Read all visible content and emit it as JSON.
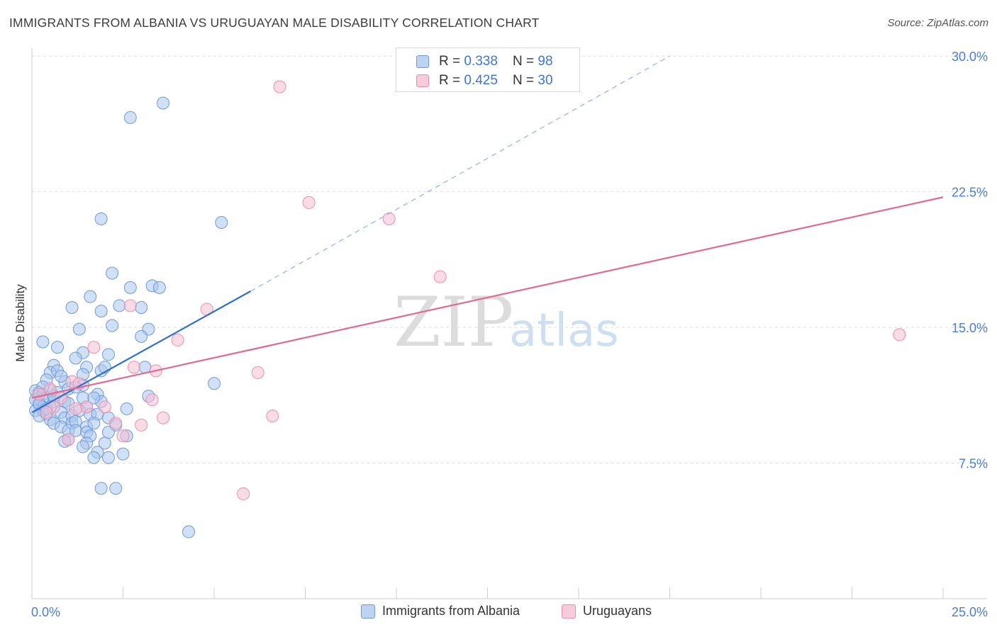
{
  "title": "IMMIGRANTS FROM ALBANIA VS URUGUAYAN MALE DISABILITY CORRELATION CHART",
  "source": "Source: ZipAtlas.com",
  "watermark": {
    "zip": "ZIP",
    "atlas": "atlas"
  },
  "colors": {
    "blue_fill": "#a9c7ee",
    "blue_stroke": "#6f9ad6",
    "blue_line": "#2f6fcf",
    "pink_fill": "#f6bfd1",
    "pink_stroke": "#e98faf",
    "pink_line": "#e06a93",
    "grid": "#dedede",
    "axis_text": "#4a7fd0"
  },
  "legend": {
    "rows": [
      {
        "r_label": "R = ",
        "r_value": "0.338",
        "n_label": "N = ",
        "n_value": "98"
      },
      {
        "r_label": "R = ",
        "r_value": "0.425",
        "n_label": "N = ",
        "n_value": "30"
      }
    ]
  },
  "bottom_legend": {
    "series1": "Immigrants from Albania",
    "series2": "Uruguayans"
  },
  "chart_data": {
    "type": "scatter",
    "title": "IMMIGRANTS FROM ALBANIA VS URUGUAYAN MALE DISABILITY CORRELATION CHART",
    "xlabel": "",
    "ylabel": "Male Disability",
    "xlim": [
      0,
      25
    ],
    "ylim": [
      0,
      31.5
    ],
    "x_tick_labels": [
      "0.0%",
      "25.0%"
    ],
    "y_ticks": [
      7.5,
      15.0,
      22.5,
      30.0
    ],
    "y_tick_labels": [
      "7.5%",
      "15.0%",
      "22.5%",
      "30.0%"
    ],
    "grid": true,
    "series": [
      {
        "name": "Immigrants from Albania",
        "color": "#a9c7ee",
        "R": 0.338,
        "N": 98,
        "trend": {
          "x0": 0.0,
          "y0": 10.3,
          "x1": 6.0,
          "y1": 17.0,
          "dash_to_x": 17.5,
          "dash_to_y": 30.0
        },
        "points": [
          [
            3.6,
            27.4
          ],
          [
            2.7,
            26.6
          ],
          [
            1.9,
            21.0
          ],
          [
            5.2,
            20.8
          ],
          [
            2.2,
            18.0
          ],
          [
            2.7,
            17.2
          ],
          [
            3.3,
            17.3
          ],
          [
            3.5,
            17.2
          ],
          [
            1.6,
            16.7
          ],
          [
            1.1,
            16.1
          ],
          [
            1.9,
            15.9
          ],
          [
            3.0,
            16.1
          ],
          [
            2.4,
            16.2
          ],
          [
            2.2,
            15.1
          ],
          [
            1.3,
            14.9
          ],
          [
            3.2,
            14.9
          ],
          [
            3.0,
            14.5
          ],
          [
            0.3,
            14.2
          ],
          [
            0.7,
            13.9
          ],
          [
            1.4,
            13.6
          ],
          [
            2.1,
            13.5
          ],
          [
            1.2,
            13.3
          ],
          [
            0.6,
            12.9
          ],
          [
            1.5,
            12.8
          ],
          [
            1.9,
            12.6
          ],
          [
            2.0,
            12.8
          ],
          [
            3.1,
            12.8
          ],
          [
            0.5,
            12.5
          ],
          [
            0.7,
            12.6
          ],
          [
            1.4,
            12.4
          ],
          [
            0.4,
            12.1
          ],
          [
            0.9,
            12.0
          ],
          [
            1.4,
            11.8
          ],
          [
            1.0,
            11.6
          ],
          [
            1.2,
            11.7
          ],
          [
            5.0,
            11.9
          ],
          [
            0.1,
            11.5
          ],
          [
            0.2,
            11.4
          ],
          [
            0.5,
            11.5
          ],
          [
            0.7,
            11.4
          ],
          [
            0.3,
            11.3
          ],
          [
            1.8,
            11.3
          ],
          [
            3.2,
            11.2
          ],
          [
            0.1,
            11.0
          ],
          [
            0.4,
            11.1
          ],
          [
            1.4,
            11.1
          ],
          [
            0.6,
            10.9
          ],
          [
            0.9,
            10.9
          ],
          [
            1.9,
            10.9
          ],
          [
            0.2,
            10.7
          ],
          [
            0.3,
            10.6
          ],
          [
            0.5,
            10.6
          ],
          [
            1.5,
            10.6
          ],
          [
            2.6,
            10.5
          ],
          [
            0.1,
            10.4
          ],
          [
            0.3,
            10.4
          ],
          [
            0.4,
            10.2
          ],
          [
            0.8,
            10.3
          ],
          [
            0.9,
            10.0
          ],
          [
            1.1,
            10.1
          ],
          [
            1.6,
            10.2
          ],
          [
            1.8,
            10.2
          ],
          [
            2.1,
            10.0
          ],
          [
            0.2,
            10.1
          ],
          [
            0.5,
            9.9
          ],
          [
            0.6,
            9.7
          ],
          [
            1.1,
            9.7
          ],
          [
            1.2,
            9.8
          ],
          [
            1.5,
            9.5
          ],
          [
            1.7,
            9.7
          ],
          [
            2.3,
            9.6
          ],
          [
            0.8,
            9.5
          ],
          [
            1.0,
            9.3
          ],
          [
            1.2,
            9.3
          ],
          [
            1.5,
            9.2
          ],
          [
            2.1,
            9.2
          ],
          [
            2.6,
            9.0
          ],
          [
            1.6,
            9.0
          ],
          [
            1.0,
            8.8
          ],
          [
            0.9,
            8.7
          ],
          [
            1.5,
            8.6
          ],
          [
            2.0,
            8.6
          ],
          [
            1.4,
            8.4
          ],
          [
            1.8,
            8.1
          ],
          [
            2.5,
            8.0
          ],
          [
            1.7,
            7.8
          ],
          [
            2.1,
            7.8
          ],
          [
            1.9,
            6.1
          ],
          [
            2.3,
            6.1
          ],
          [
            4.3,
            3.7
          ],
          [
            0.2,
            10.8
          ],
          [
            0.4,
            10.5
          ],
          [
            0.6,
            11.2
          ],
          [
            1.3,
            10.4
          ],
          [
            1.0,
            10.8
          ],
          [
            0.3,
            11.7
          ],
          [
            1.7,
            11.1
          ],
          [
            0.8,
            12.3
          ]
        ]
      },
      {
        "name": "Uruguayans",
        "color": "#f6bfd1",
        "R": 0.425,
        "N": 30,
        "trend": {
          "x0": 0.0,
          "y0": 11.1,
          "x1": 25.0,
          "y1": 22.2
        },
        "points": [
          [
            6.8,
            28.3
          ],
          [
            7.6,
            21.9
          ],
          [
            9.8,
            21.0
          ],
          [
            11.2,
            17.8
          ],
          [
            2.7,
            16.2
          ],
          [
            4.8,
            16.0
          ],
          [
            23.8,
            14.6
          ],
          [
            4.0,
            14.3
          ],
          [
            1.7,
            13.9
          ],
          [
            2.8,
            12.8
          ],
          [
            3.4,
            12.6
          ],
          [
            6.2,
            12.5
          ],
          [
            1.1,
            12.0
          ],
          [
            1.3,
            11.9
          ],
          [
            0.5,
            11.6
          ],
          [
            0.2,
            11.3
          ],
          [
            0.8,
            11.1
          ],
          [
            3.3,
            11.0
          ],
          [
            0.6,
            10.6
          ],
          [
            1.5,
            10.6
          ],
          [
            2.0,
            10.6
          ],
          [
            0.4,
            10.3
          ],
          [
            1.2,
            10.5
          ],
          [
            6.6,
            10.1
          ],
          [
            3.6,
            10.0
          ],
          [
            2.3,
            9.7
          ],
          [
            3.0,
            9.6
          ],
          [
            2.5,
            9.0
          ],
          [
            1.0,
            8.8
          ],
          [
            5.8,
            5.8
          ]
        ]
      }
    ]
  }
}
